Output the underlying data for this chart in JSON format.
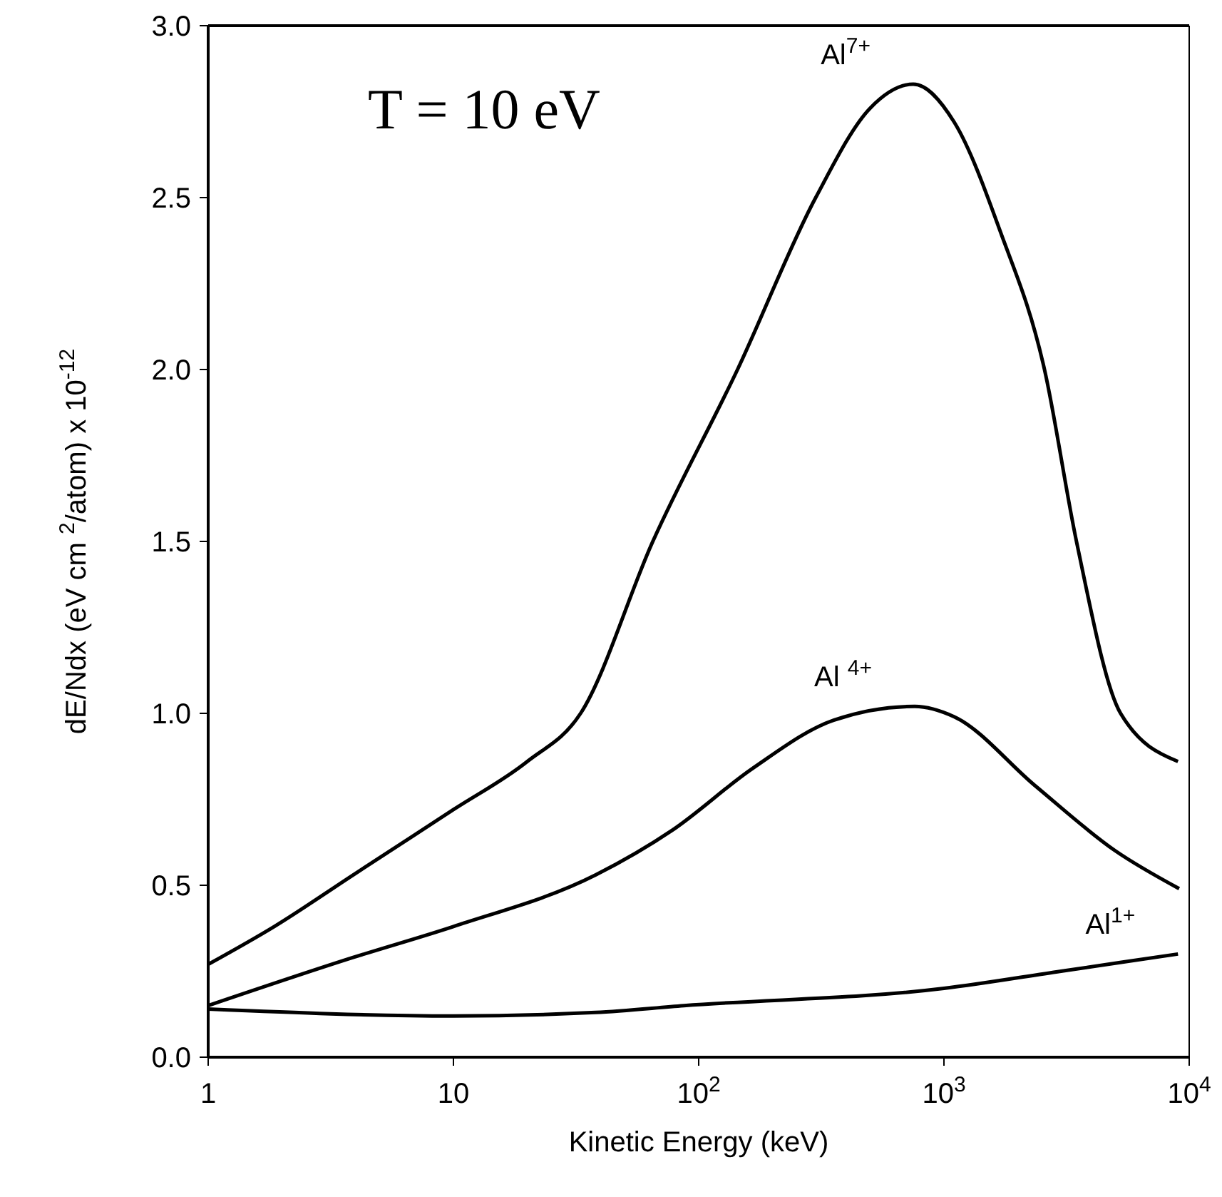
{
  "chart_data": {
    "type": "line",
    "xlabel": "Kinetic Energy  (keV)",
    "ylabel": "dE/Ndx (eV cm $^{2}$/atom) x 10$^{-12}$",
    "annotations": [
      "T = 10 eV"
    ],
    "log": "x",
    "xlim": [
      1,
      10000
    ],
    "xticks": [
      1,
      10,
      {
        "value": 100,
        "label": "10$^{2}$"
      },
      {
        "value": 1000,
        "label": "10$^{3}$"
      },
      {
        "value": 10000,
        "label": "10$^{4}$"
      }
    ],
    "ylim": [
      0,
      3
    ],
    "yticks": [
      {
        "value": 0,
        "label": "0.0"
      },
      0.5,
      {
        "value": 1,
        "label": "1.0"
      },
      1.5,
      {
        "value": 2,
        "label": "2.0"
      },
      2.5,
      {
        "value": 3,
        "label": "3.0"
      }
    ],
    "legend": false,
    "marker": "none",
    "line_style": "solid",
    "series": [
      {
        "name": "Al$^{7+}$",
        "color": "#000000",
        "x": [
          1,
          1.86,
          3.9,
          10,
          20,
          33,
          65,
          144,
          300,
          500,
          750,
          1100,
          1700,
          2570,
          3470,
          5250,
          9000
        ],
        "values": [
          0.27,
          0.38,
          0.53,
          0.72,
          0.86,
          1.0,
          1.5,
          2.0,
          2.5,
          2.76,
          2.83,
          2.72,
          2.4,
          2.0,
          1.5,
          1.0,
          0.86
        ]
      },
      {
        "name": "Al $^{4+}$",
        "color": "#000000",
        "x": [
          1,
          3.9,
          10,
          38,
          78,
          166,
          355,
          760,
          1100,
          2350,
          5000,
          9100
        ],
        "values": [
          0.15,
          0.29,
          0.38,
          0.53,
          0.66,
          0.84,
          0.98,
          1.02,
          0.99,
          0.79,
          0.6,
          0.49
        ]
      },
      {
        "name": "Al$^{1+}$",
        "color": "#000000",
        "x": [
          1,
          10,
          38,
          87,
          1000,
          3000,
          9000
        ],
        "values": [
          0.14,
          0.12,
          0.13,
          0.15,
          0.2,
          0.25,
          0.3
        ]
      }
    ]
  }
}
